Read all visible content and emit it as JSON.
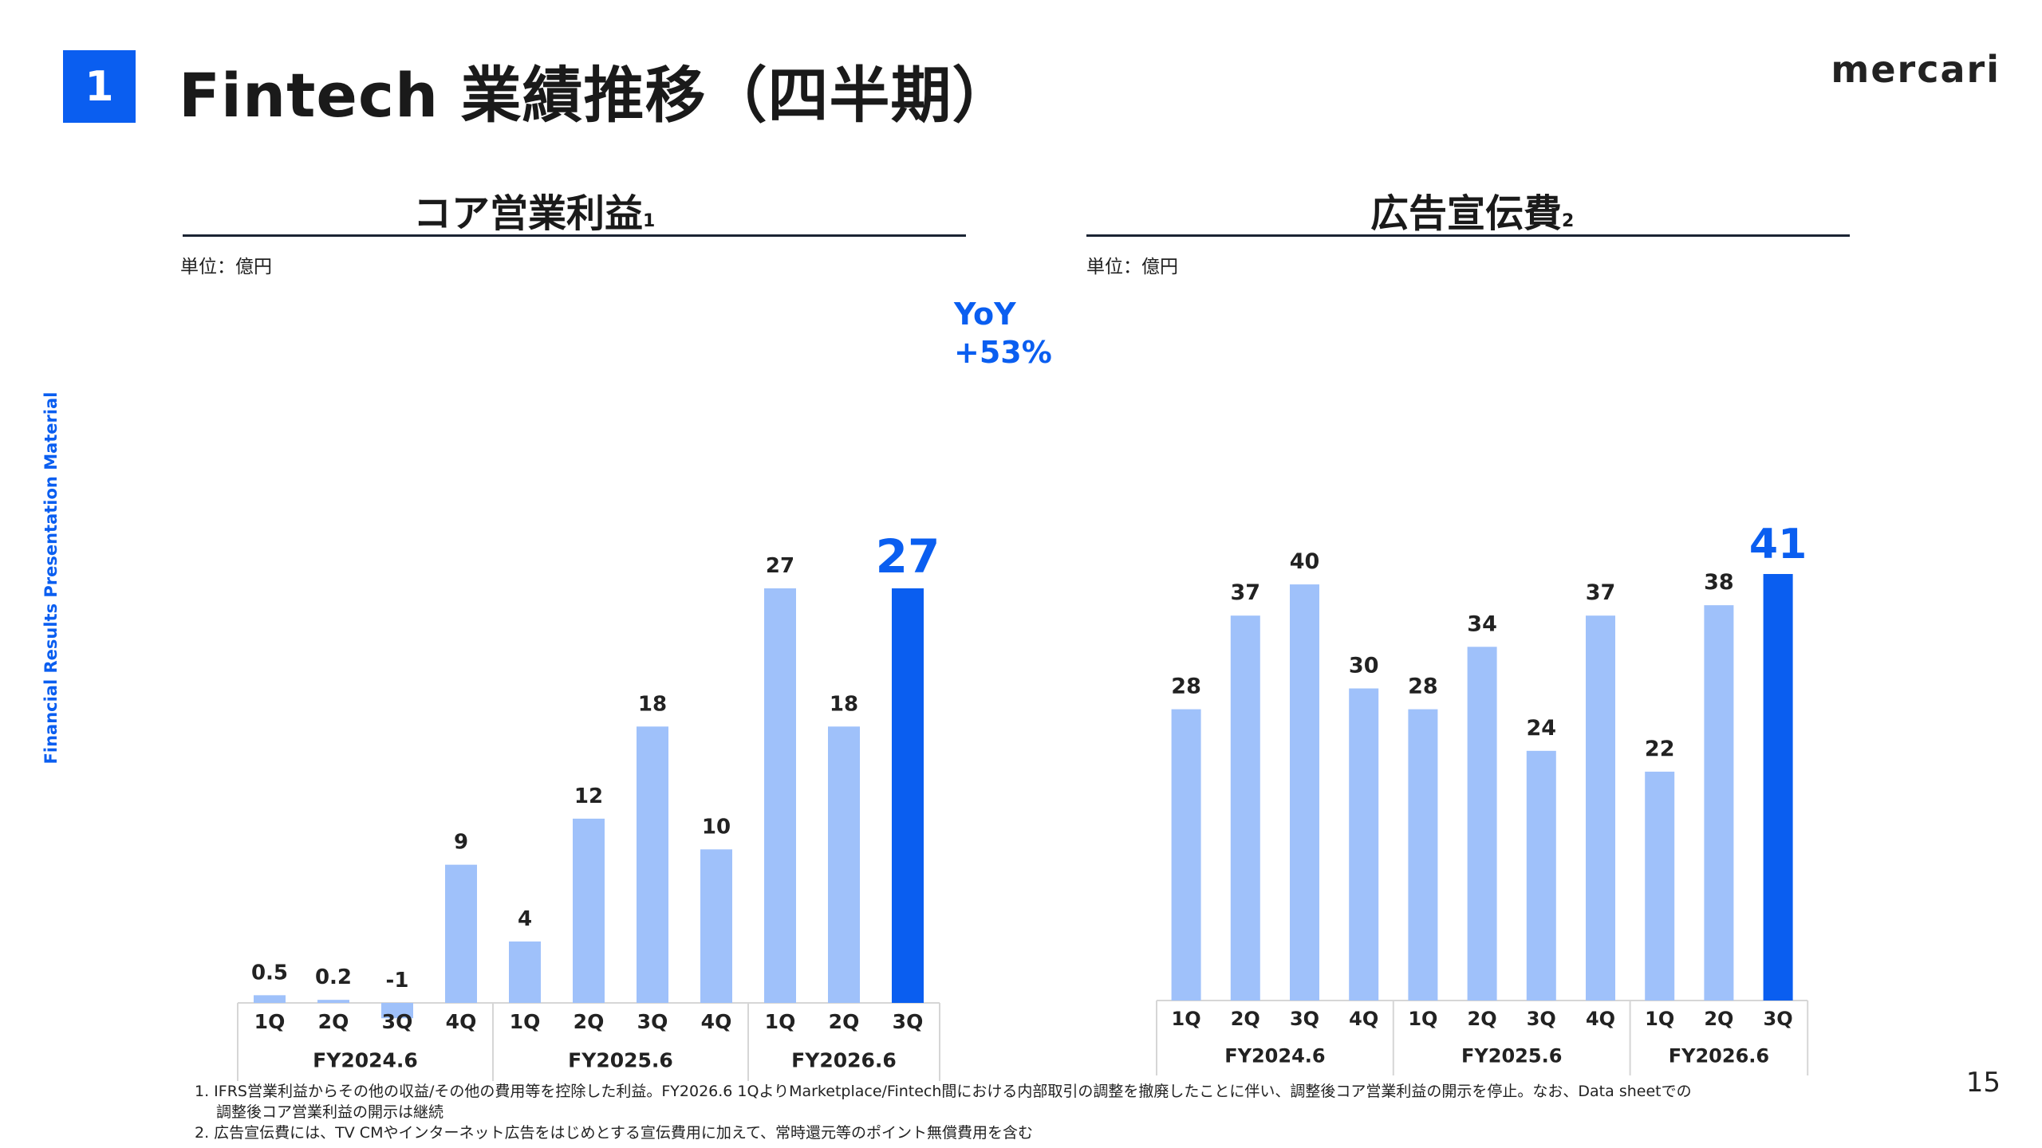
{
  "header": {
    "section_number": "1",
    "title": "Fintech 業績推移（四半期）",
    "logo": "mercari"
  },
  "sidebar": {
    "label": "Financial Results Presentation Material"
  },
  "colors": {
    "accent": "#0a5ef0",
    "bar_light": "#9fc1fa",
    "bar_highlight": "#0a5ef0"
  },
  "left_panel": {
    "title": "コア営業利益",
    "title_note": "1",
    "unit": "単位：億円",
    "yoy_line1": "YoY",
    "yoy_line2": "+53%"
  },
  "right_panel": {
    "title": "広告宣伝費",
    "title_note": "2",
    "unit": "単位：億円"
  },
  "chart_data": [
    {
      "type": "bar",
      "title": "コア営業利益",
      "unit": "単位：億円",
      "categories": [
        "1Q",
        "2Q",
        "3Q",
        "4Q",
        "1Q",
        "2Q",
        "3Q",
        "4Q",
        "1Q",
        "2Q",
        "3Q"
      ],
      "groups": [
        {
          "label": "FY2024.6",
          "count": 4
        },
        {
          "label": "FY2025.6",
          "count": 4
        },
        {
          "label": "FY2026.6",
          "count": 3
        }
      ],
      "values": [
        0.5,
        0.2,
        -1,
        9,
        4,
        12,
        18,
        10,
        27,
        18,
        27
      ],
      "data_labels": [
        "0.5",
        "0.2",
        "-1",
        "9",
        "4",
        "12",
        "18",
        "10",
        "27",
        "18",
        "27"
      ],
      "highlight_index": 10,
      "ylim": [
        -1.5,
        27
      ],
      "grid": false,
      "annotation": "YoY +53%"
    },
    {
      "type": "bar",
      "title": "広告宣伝費",
      "unit": "単位：億円",
      "categories": [
        "1Q",
        "2Q",
        "3Q",
        "4Q",
        "1Q",
        "2Q",
        "3Q",
        "4Q",
        "1Q",
        "2Q",
        "3Q"
      ],
      "groups": [
        {
          "label": "FY2024.6",
          "count": 4
        },
        {
          "label": "FY2025.6",
          "count": 4
        },
        {
          "label": "FY2026.6",
          "count": 3
        }
      ],
      "values": [
        28,
        37,
        40,
        30,
        28,
        34,
        24,
        37,
        22,
        38,
        41
      ],
      "data_labels": [
        "28",
        "37",
        "40",
        "30",
        "28",
        "34",
        "24",
        "37",
        "22",
        "38",
        "41"
      ],
      "highlight_index": 10,
      "ylim": [
        0,
        41
      ],
      "grid": false
    }
  ],
  "footnotes": {
    "note1_line1": "1. IFRS営業利益からその他の収益/その他の費用等を控除した利益。FY2026.6 1QよりMarketplace/Fintech間における内部取引の調整を撤廃したことに伴い、調整後コア営業利益の開示を停止。なお、Data sheetでの",
    "note1_line2": "調整後コア営業利益の開示は継続",
    "note2": "2. 広告宣伝費には、TV CMやインターネット広告をはじめとする宣伝費用に加えて、常時還元等のポイント無償費用を含む"
  },
  "page_number": "15"
}
